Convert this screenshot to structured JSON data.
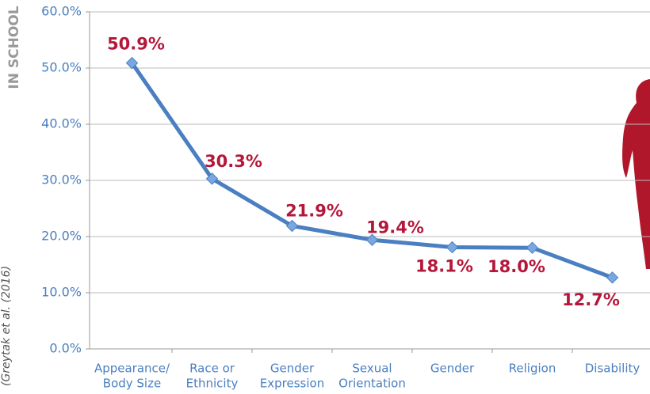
{
  "chart_data": {
    "type": "line",
    "side_title": "IN SCHOOL",
    "source": "(Greytak et al. (2016)",
    "categories": [
      [
        "Appearance/",
        "Body Size"
      ],
      [
        "Race or",
        "Ethnicity"
      ],
      [
        "Gender",
        "Expression"
      ],
      [
        "Sexual",
        "Orientation"
      ],
      [
        "Gender"
      ],
      [
        "Religion"
      ],
      [
        "Disability"
      ]
    ],
    "values": [
      50.9,
      30.3,
      21.9,
      19.4,
      18.1,
      18.0,
      12.7
    ],
    "value_labels": [
      "50.9%",
      "30.3%",
      "21.9%",
      "19.4%",
      "18.1%",
      "18.0%",
      "12.7%"
    ],
    "color": "#4a7fc1",
    "ylim": [
      0,
      60
    ],
    "yticks": [
      {
        "value": 0,
        "label": "0.0%"
      },
      {
        "value": 10,
        "label": "10.0%"
      },
      {
        "value": 20,
        "label": "20.0%"
      },
      {
        "value": 30,
        "label": "30.0%"
      },
      {
        "value": 40,
        "label": "40.0%"
      },
      {
        "value": 50,
        "label": "50.0%"
      },
      {
        "value": 60,
        "label": "60.0%"
      }
    ],
    "grid": true
  }
}
